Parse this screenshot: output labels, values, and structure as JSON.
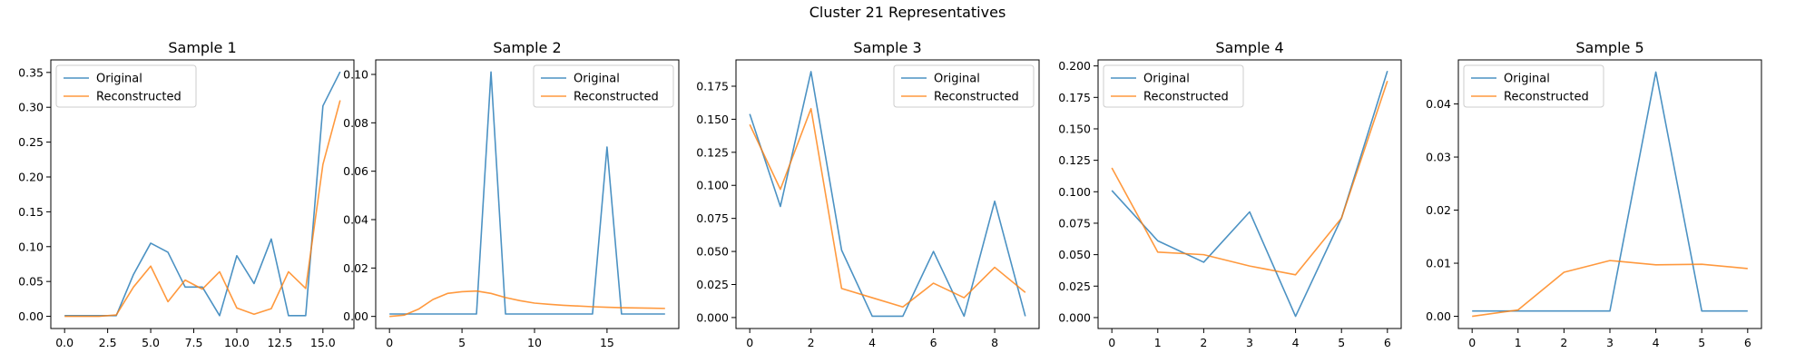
{
  "figure": {
    "title": "Cluster 21 Representatives"
  },
  "legend_labels": [
    "Original",
    "Reconstructed"
  ],
  "series_colors": [
    "#1f77b4",
    "#ff7f0e"
  ],
  "chart_data": [
    {
      "type": "line",
      "title": "Sample 1",
      "xlabel": "",
      "ylabel": "",
      "xlim": [
        -0.8,
        16.8
      ],
      "ylim": [
        -0.0175,
        0.368
      ],
      "xticks": [
        0.0,
        2.5,
        5.0,
        7.5,
        10.0,
        12.5,
        15.0
      ],
      "xtick_labels": [
        "0.0",
        "2.5",
        "5.0",
        "7.5",
        "10.0",
        "12.5",
        "15.0"
      ],
      "yticks": [
        0.0,
        0.05,
        0.1,
        0.15,
        0.2,
        0.25,
        0.3,
        0.35
      ],
      "ytick_labels": [
        "0.00",
        "0.05",
        "0.10",
        "0.15",
        "0.20",
        "0.25",
        "0.30",
        "0.35"
      ],
      "legend_position": "upper-left",
      "x": [
        0,
        1,
        2,
        3,
        4,
        5,
        6,
        7,
        8,
        9,
        10,
        11,
        12,
        13,
        14,
        15,
        16
      ],
      "series": [
        {
          "name": "Original",
          "values": [
            0.001,
            0.001,
            0.001,
            0.001,
            0.06,
            0.105,
            0.092,
            0.042,
            0.042,
            0.001,
            0.087,
            0.047,
            0.111,
            0.001,
            0.001,
            0.302,
            0.351
          ]
        },
        {
          "name": "Reconstructed",
          "values": [
            0.0,
            0.0,
            0.0,
            0.002,
            0.042,
            0.072,
            0.021,
            0.052,
            0.039,
            0.064,
            0.012,
            0.003,
            0.011,
            0.064,
            0.04,
            0.218,
            0.31
          ]
        }
      ]
    },
    {
      "type": "line",
      "title": "Sample 2",
      "xlabel": "",
      "ylabel": "",
      "xlim": [
        -0.95,
        19.95
      ],
      "ylim": [
        -0.005,
        0.106
      ],
      "xticks": [
        0,
        5,
        10,
        15
      ],
      "xtick_labels": [
        "0",
        "5",
        "10",
        "15"
      ],
      "yticks": [
        0.0,
        0.02,
        0.04,
        0.06,
        0.08,
        0.1
      ],
      "ytick_labels": [
        "0.00",
        "0.02",
        "0.04",
        "0.06",
        "0.08",
        "0.10"
      ],
      "legend_position": "upper-right",
      "x": [
        0,
        1,
        2,
        3,
        4,
        5,
        6,
        7,
        8,
        9,
        10,
        11,
        12,
        13,
        14,
        15,
        16,
        17,
        18,
        19
      ],
      "series": [
        {
          "name": "Original",
          "values": [
            0.001,
            0.001,
            0.001,
            0.001,
            0.001,
            0.001,
            0.001,
            0.101,
            0.001,
            0.001,
            0.001,
            0.001,
            0.001,
            0.001,
            0.001,
            0.07,
            0.001,
            0.001,
            0.001,
            0.001
          ]
        },
        {
          "name": "Reconstructed",
          "values": [
            0.0,
            0.0005,
            0.003,
            0.007,
            0.0095,
            0.0102,
            0.0105,
            0.0095,
            0.0078,
            0.0065,
            0.0055,
            0.005,
            0.0046,
            0.0043,
            0.004,
            0.0038,
            0.0036,
            0.0035,
            0.0034,
            0.0033
          ]
        }
      ]
    },
    {
      "type": "line",
      "title": "Sample 3",
      "xlabel": "",
      "ylabel": "",
      "xlim": [
        -0.45,
        9.45
      ],
      "ylim": [
        -0.0083,
        0.1949
      ],
      "xticks": [
        0,
        2,
        4,
        6,
        8
      ],
      "xtick_labels": [
        "0",
        "2",
        "4",
        "6",
        "8"
      ],
      "yticks": [
        0.0,
        0.025,
        0.05,
        0.075,
        0.1,
        0.125,
        0.15,
        0.175
      ],
      "ytick_labels": [
        "0.000",
        "0.025",
        "0.050",
        "0.075",
        "0.100",
        "0.125",
        "0.150",
        "0.175"
      ],
      "legend_position": "upper-right",
      "x": [
        0,
        1,
        2,
        3,
        4,
        5,
        6,
        7,
        8,
        9
      ],
      "series": [
        {
          "name": "Original",
          "values": [
            0.154,
            0.084,
            0.186,
            0.051,
            0.001,
            0.001,
            0.05,
            0.001,
            0.088,
            0.001
          ]
        },
        {
          "name": "Reconstructed",
          "values": [
            0.146,
            0.097,
            0.158,
            0.022,
            0.015,
            0.008,
            0.026,
            0.015,
            0.038,
            0.019
          ]
        }
      ]
    },
    {
      "type": "line",
      "title": "Sample 4",
      "xlabel": "",
      "ylabel": "",
      "xlim": [
        -0.3,
        6.3
      ],
      "ylim": [
        -0.0087,
        0.2048
      ],
      "xticks": [
        0,
        1,
        2,
        3,
        4,
        5,
        6
      ],
      "xtick_labels": [
        "0",
        "1",
        "2",
        "3",
        "4",
        "5",
        "6"
      ],
      "yticks": [
        0.0,
        0.025,
        0.05,
        0.075,
        0.1,
        0.125,
        0.15,
        0.175,
        0.2
      ],
      "ytick_labels": [
        "0.000",
        "0.025",
        "0.050",
        "0.075",
        "0.100",
        "0.125",
        "0.150",
        "0.175",
        "0.200"
      ],
      "legend_position": "upper-left",
      "x": [
        0,
        1,
        2,
        3,
        4,
        5,
        6
      ],
      "series": [
        {
          "name": "Original",
          "values": [
            0.101,
            0.061,
            0.044,
            0.084,
            0.001,
            0.079,
            0.196
          ]
        },
        {
          "name": "Reconstructed",
          "values": [
            0.119,
            0.052,
            0.05,
            0.041,
            0.034,
            0.079,
            0.188
          ]
        }
      ]
    },
    {
      "type": "line",
      "title": "Sample 5",
      "xlabel": "",
      "ylabel": "",
      "xlim": [
        -0.3,
        6.3
      ],
      "ylim": [
        -0.0023,
        0.0483
      ],
      "xticks": [
        0,
        1,
        2,
        3,
        4,
        5,
        6
      ],
      "xtick_labels": [
        "0",
        "1",
        "2",
        "3",
        "4",
        "5",
        "6"
      ],
      "yticks": [
        0.0,
        0.01,
        0.02,
        0.03,
        0.04
      ],
      "ytick_labels": [
        "0.00",
        "0.01",
        "0.02",
        "0.03",
        "0.04"
      ],
      "legend_position": "upper-left",
      "x": [
        0,
        1,
        2,
        3,
        4,
        5,
        6
      ],
      "series": [
        {
          "name": "Original",
          "values": [
            0.001,
            0.001,
            0.001,
            0.001,
            0.046,
            0.001,
            0.001
          ]
        },
        {
          "name": "Reconstructed",
          "values": [
            0.0,
            0.0012,
            0.0083,
            0.0105,
            0.0097,
            0.0098,
            0.009
          ]
        }
      ]
    }
  ]
}
